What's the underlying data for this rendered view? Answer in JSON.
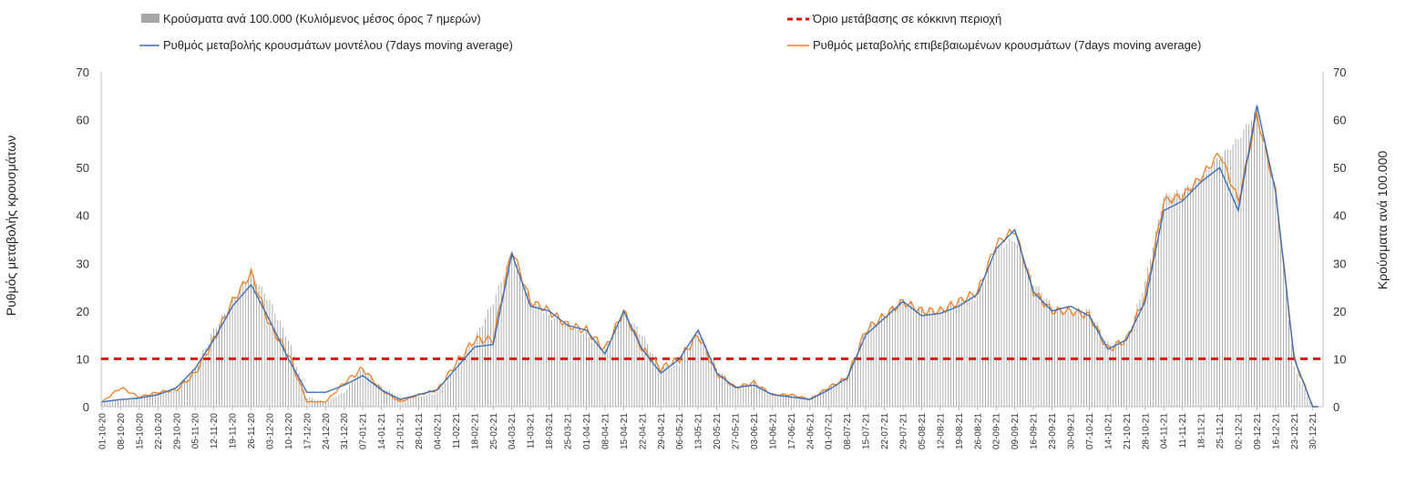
{
  "chart_data": {
    "type": "bar+line",
    "title": "",
    "ylabel_left": "Ρυθμός μεταβολής κρουσμάτων",
    "ylabel_right": "Κρούσματα ανά 100.000",
    "ylim_left": [
      0,
      70
    ],
    "ylim_right": [
      0,
      70
    ],
    "y_ticks": [
      0,
      10,
      20,
      30,
      40,
      50,
      60,
      70
    ],
    "threshold": 10,
    "x_tick_labels": [
      "01-10-20",
      "08-10-20",
      "15-10-20",
      "22-10-20",
      "29-10-20",
      "05-11-20",
      "12-11-20",
      "19-11-20",
      "26-11-20",
      "03-12-20",
      "10-12-20",
      "17-12-20",
      "24-12-20",
      "31-12-20",
      "07-01-21",
      "14-01-21",
      "21-01-21",
      "28-01-21",
      "04-02-21",
      "11-02-21",
      "18-02-21",
      "25-02-21",
      "04-03-21",
      "11-03-21",
      "18-03-21",
      "25-03-21",
      "01-04-21",
      "08-04-21",
      "15-04-21",
      "22-04-21",
      "29-04-21",
      "06-05-21",
      "13-05-21",
      "20-05-21",
      "27-05-21",
      "03-06-21",
      "10-06-21",
      "17-06-21",
      "24-06-21",
      "01-07-21",
      "08-07-21",
      "15-07-21",
      "22-07-21",
      "29-07-21",
      "05-08-21",
      "12-08-21",
      "19-08-21",
      "26-08-21",
      "02-09-21",
      "09-09-21",
      "16-09-21",
      "23-09-21",
      "30-09-21",
      "07-10-21",
      "14-10-21",
      "21-10-21",
      "28-10-21",
      "04-11-21",
      "11-11-21",
      "18-11-21",
      "25-11-21",
      "02-12-21",
      "09-12-21",
      "16-12-21",
      "23-12-21",
      "30-12-21"
    ],
    "weekly_keypoints": {
      "bars_cases_per_100k": [
        1,
        1.5,
        2,
        3,
        3.5,
        8,
        16,
        22,
        28,
        22,
        14,
        2,
        1,
        3,
        8,
        4,
        2,
        2,
        3,
        8,
        14,
        22,
        32,
        22,
        19,
        17,
        15,
        12,
        20,
        15,
        8,
        9,
        16,
        8,
        4,
        5,
        2.5,
        2.5,
        2,
        4,
        6,
        16,
        19,
        22,
        20,
        20,
        22,
        23,
        33,
        35,
        26,
        21,
        20,
        20,
        13,
        14,
        26,
        44,
        45,
        48,
        52,
        56,
        62,
        45,
        8,
        0
      ],
      "model_rate_7day_ma": [
        1,
        1.5,
        1.8,
        2.5,
        4,
        8,
        14,
        21,
        25.5,
        18,
        10,
        3,
        3,
        4.5,
        6.5,
        3.5,
        1.5,
        2.5,
        3.5,
        8,
        12.5,
        13,
        32,
        21,
        20,
        17,
        16,
        11,
        20,
        12,
        7,
        10,
        16,
        7,
        4,
        4.5,
        2.5,
        2,
        1.5,
        3.5,
        6,
        15,
        18.5,
        22,
        19,
        19.5,
        21,
        23.5,
        33,
        37,
        24,
        20,
        21,
        19,
        12,
        14,
        22,
        41,
        43,
        47,
        50,
        41,
        63,
        45,
        10,
        0
      ],
      "confirmed_rate_7day_ma": [
        1,
        4,
        2,
        3,
        3.5,
        7,
        14,
        22,
        28,
        17,
        11,
        1,
        1,
        5,
        8,
        3.5,
        1,
        2.5,
        3.5,
        9,
        14,
        14,
        33,
        22,
        20,
        17,
        16,
        12,
        20,
        12,
        8,
        10,
        15,
        7,
        4,
        5,
        2.5,
        2.5,
        1.5,
        4,
        6,
        16,
        19,
        22,
        20,
        20,
        22,
        24,
        34,
        37,
        24,
        20,
        20,
        19,
        12,
        14,
        23,
        43,
        44,
        48,
        53,
        43,
        61,
        45,
        10,
        0
      ]
    }
  },
  "legend": {
    "bars": "Κρούσματα ανά 100.000 (Κυλιόμενος μέσος όρος 7 ημερών)",
    "threshold": "Όριο μετάβασης σε κόκκινη περιοχή",
    "model": "Ρυθμός μεταβολής κρουσμάτων μοντέλου (7days moving average)",
    "confirmed": "Ρυθμός μεταβολής επιβεβαιωμένων κρουσμάτων (7days moving average)"
  },
  "colors": {
    "bars": "#a6a6a6",
    "threshold": "#e3120b",
    "model": "#3f6fb6",
    "confirmed": "#ef7f22",
    "axis": "#bfbfbf"
  }
}
